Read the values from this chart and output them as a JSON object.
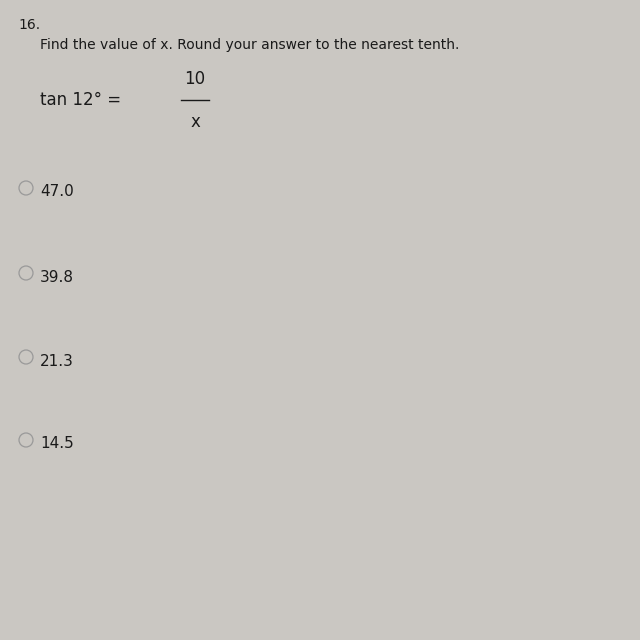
{
  "problem_number": "16.",
  "instruction": "Find the value of x. Round your answer to the nearest tenth.",
  "equation_prefix": "tan 12° = ",
  "numerator": "10",
  "denominator": "x",
  "choices": [
    "47.0",
    "39.8",
    "21.3",
    "14.5"
  ],
  "background_color": "#cac7c2",
  "text_color": "#1a1a1a",
  "circle_color": "#999999",
  "problem_number_fontsize": 10,
  "instruction_fontsize": 10,
  "equation_fontsize": 11,
  "choice_fontsize": 10,
  "fig_width": 6.4,
  "fig_height": 6.4
}
